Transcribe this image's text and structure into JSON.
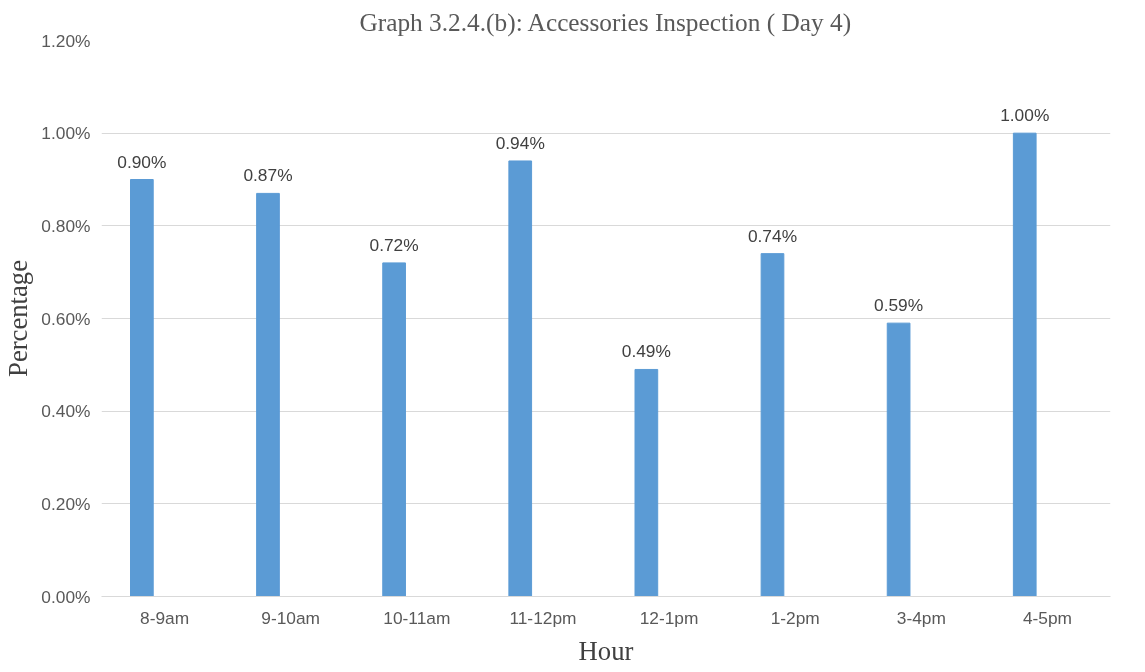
{
  "chart_data": {
    "type": "bar",
    "title": "Graph 3.2.4.(b): Accessories Inspection ( Day 4)",
    "xlabel": "Hour",
    "ylabel": "Percentage",
    "categories": [
      "8-9am",
      "9-10am",
      "10-11am",
      "11-12pm",
      "12-1pm",
      "1-2pm",
      "3-4pm",
      "4-5pm"
    ],
    "values": [
      0.9,
      0.87,
      0.72,
      0.94,
      0.49,
      0.74,
      0.59,
      1.0
    ],
    "value_labels": [
      "0.90%",
      "0.87%",
      "0.72%",
      "0.94%",
      "0.49%",
      "0.74%",
      "0.59%",
      "1.00%"
    ],
    "color": "#5b9bd5",
    "ylim": [
      0,
      1.2
    ],
    "yticks": [
      {
        "value": 0,
        "label": "0.00%"
      },
      {
        "value": 0.2,
        "label": "0.20%"
      },
      {
        "value": 0.4,
        "label": "0.40%"
      },
      {
        "value": 0.6,
        "label": "0.60%"
      },
      {
        "value": 0.8,
        "label": "0.80%"
      },
      {
        "value": 1.0,
        "label": "1.00%"
      },
      {
        "value": 1.2,
        "label": "1.20%"
      }
    ],
    "grid": "y"
  }
}
